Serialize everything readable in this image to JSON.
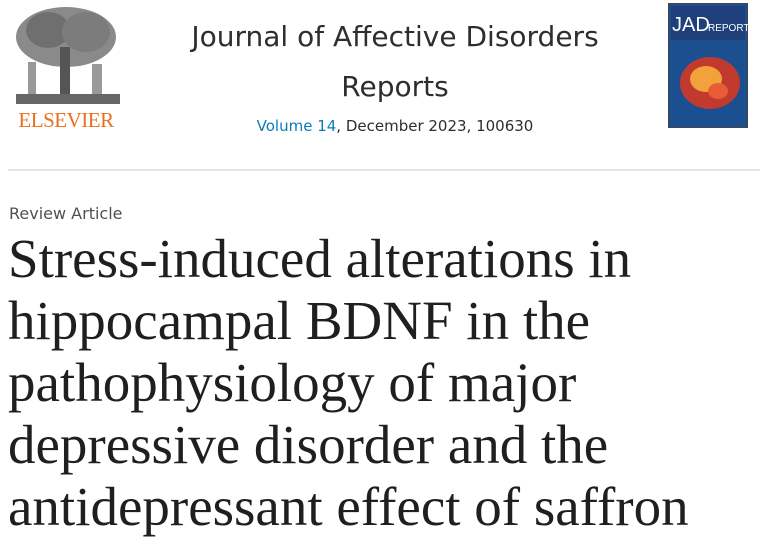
{
  "header": {
    "publisher": "ELSEVIER",
    "journal": "Journal of Affective Disorders Reports",
    "volume_link": "Volume 14",
    "issue_info": ", December 2023, 100630",
    "cover": {
      "line1": "JAD",
      "line2": "REPORTS"
    }
  },
  "article": {
    "type": "Review Article",
    "title": "Stress-induced alterations in hippocampal BDNF in the pathophysiology of major depressive disorder and the antidepressant effect of saffron"
  }
}
